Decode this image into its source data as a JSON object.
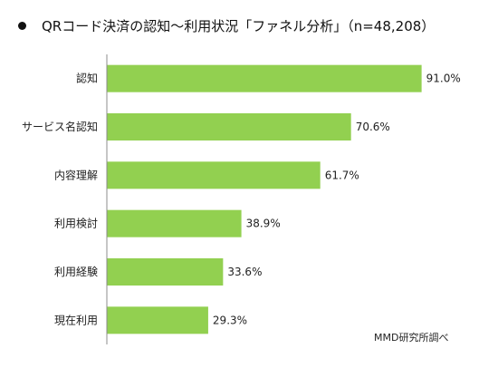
{
  "title": "QRコード決済の認知～利用状況「ファネル分析」（n=48,208）",
  "source": "MMD研究所調べ",
  "colors": {
    "bar": "#92D050",
    "axis": "#8C8C8C",
    "text": "#222222"
  },
  "chart_data": {
    "type": "bar",
    "orientation": "horizontal",
    "categories": [
      "認知",
      "サービス名認知",
      "内容理解",
      "利用検討",
      "利用経験",
      "現在利用"
    ],
    "values": [
      91.0,
      70.6,
      61.7,
      38.9,
      33.6,
      29.3
    ],
    "value_labels": [
      "91.0%",
      "70.6%",
      "61.7%",
      "38.9%",
      "33.6%",
      "29.3%"
    ],
    "unit": "%",
    "xlim": [
      0,
      100
    ],
    "grid": false,
    "legend": "none"
  }
}
